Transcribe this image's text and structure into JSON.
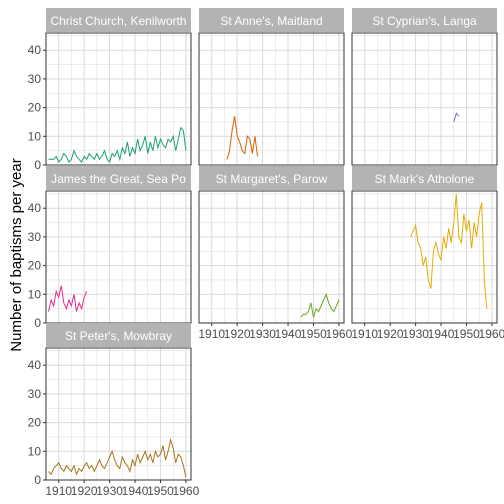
{
  "chart_data": {
    "type": "line",
    "facet": "panels",
    "ylabel": "Number of baptisms per year",
    "xlabel": "",
    "xlim": [
      1905,
      1962
    ],
    "ylim": [
      0,
      46
    ],
    "x_ticks": [
      1910,
      1920,
      1930,
      1940,
      1950,
      1960
    ],
    "y_ticks": [
      0,
      10,
      20,
      30,
      40
    ],
    "grid": true,
    "legend": "none",
    "strip_color": "#b3b3b3",
    "panel_border_color": "#333333",
    "grid_color": "#d9d9d9",
    "series": [
      {
        "name": "Christ Church, Kenilworth",
        "color": "#1b9e77",
        "x": [
          1906,
          1907,
          1908,
          1909,
          1910,
          1911,
          1912,
          1913,
          1914,
          1915,
          1916,
          1917,
          1918,
          1919,
          1920,
          1921,
          1922,
          1923,
          1924,
          1925,
          1926,
          1927,
          1928,
          1929,
          1930,
          1931,
          1932,
          1933,
          1934,
          1935,
          1936,
          1937,
          1938,
          1939,
          1940,
          1941,
          1942,
          1943,
          1944,
          1945,
          1946,
          1947,
          1948,
          1949,
          1950,
          1951,
          1952,
          1953,
          1954,
          1955,
          1956,
          1957,
          1958,
          1959,
          1960
        ],
        "y": [
          2,
          2,
          2,
          3,
          1,
          2,
          4,
          3,
          1,
          2,
          5,
          3,
          2,
          1,
          3,
          2,
          4,
          3,
          2,
          4,
          2,
          3,
          5,
          2,
          1,
          4,
          3,
          5,
          2,
          6,
          4,
          8,
          3,
          6,
          4,
          9,
          5,
          7,
          10,
          4,
          8,
          5,
          10,
          6,
          9,
          7,
          6,
          9,
          8,
          10,
          5,
          9,
          13,
          12,
          5
        ]
      },
      {
        "name": "St Anne's, Maitland",
        "color": "#d95f02",
        "x": [
          1916,
          1917,
          1918,
          1919,
          1920,
          1921,
          1922,
          1923,
          1924,
          1925,
          1926,
          1927,
          1928
        ],
        "y": [
          2,
          5,
          12,
          17,
          10,
          8,
          5,
          4,
          10,
          9,
          4,
          10,
          3
        ]
      },
      {
        "name": "St Cyprian's, Langa",
        "color": "#7570b3",
        "x": [
          1945,
          1946,
          1947
        ],
        "y": [
          15,
          18,
          17
        ]
      },
      {
        "name": "St James the Great, Sea Point",
        "color": "#e7298a",
        "x": [
          1906,
          1907,
          1908,
          1909,
          1910,
          1911,
          1912,
          1913,
          1914,
          1915,
          1916,
          1917,
          1918,
          1919,
          1920,
          1921
        ],
        "y": [
          4,
          8,
          6,
          11,
          9,
          13,
          7,
          5,
          8,
          6,
          10,
          4,
          7,
          5,
          9,
          11
        ]
      },
      {
        "name": "St Margaret's, Parow",
        "color": "#66a61e",
        "x": [
          1945,
          1946,
          1947,
          1948,
          1949,
          1950,
          1951,
          1952,
          1953,
          1954,
          1955,
          1956,
          1957,
          1958,
          1959,
          1960
        ],
        "y": [
          2,
          3,
          3,
          4,
          7,
          2,
          5,
          4,
          6,
          8,
          10,
          7,
          5,
          4,
          6,
          8
        ]
      },
      {
        "name": "St Mark's Athlone",
        "color": "#e6ab02",
        "x": [
          1928,
          1929,
          1930,
          1931,
          1932,
          1933,
          1934,
          1935,
          1936,
          1937,
          1938,
          1939,
          1940,
          1941,
          1942,
          1943,
          1944,
          1945,
          1946,
          1947,
          1948,
          1949,
          1950,
          1951,
          1952,
          1953,
          1954,
          1955,
          1956,
          1957,
          1958
        ],
        "y": [
          30,
          32,
          34,
          28,
          26,
          20,
          23,
          15,
          12,
          25,
          28,
          24,
          22,
          30,
          26,
          33,
          28,
          35,
          45,
          30,
          28,
          38,
          32,
          36,
          26,
          35,
          30,
          38,
          42,
          15,
          5
        ]
      },
      {
        "name": "St Peter's, Mowbray",
        "color": "#a6761d",
        "x": [
          1906,
          1907,
          1908,
          1909,
          1910,
          1911,
          1912,
          1913,
          1914,
          1915,
          1916,
          1917,
          1918,
          1919,
          1920,
          1921,
          1922,
          1923,
          1924,
          1925,
          1926,
          1927,
          1928,
          1929,
          1930,
          1931,
          1932,
          1933,
          1934,
          1935,
          1936,
          1937,
          1938,
          1939,
          1940,
          1941,
          1942,
          1943,
          1944,
          1945,
          1946,
          1947,
          1948,
          1949,
          1950,
          1951,
          1952,
          1953,
          1954,
          1955,
          1956,
          1957,
          1958,
          1959,
          1960
        ],
        "y": [
          3,
          2,
          4,
          5,
          6,
          4,
          3,
          5,
          4,
          3,
          5,
          2,
          4,
          3,
          5,
          6,
          4,
          5,
          3,
          5,
          7,
          5,
          4,
          6,
          8,
          10,
          7,
          5,
          4,
          8,
          6,
          5,
          3,
          7,
          5,
          9,
          6,
          8,
          10,
          7,
          9,
          6,
          10,
          8,
          9,
          12,
          7,
          10,
          14,
          11,
          6,
          9,
          8,
          5,
          1
        ]
      }
    ],
    "strip_labels": [
      "Christ Church, Kenilworth",
      "St Anne's, Maitland",
      "St Cyprian's, Langa",
      "James the Great, Sea Po",
      "St Margaret's, Parow",
      "St Mark's Atholone",
      "St Peter's, Mowbray"
    ]
  }
}
